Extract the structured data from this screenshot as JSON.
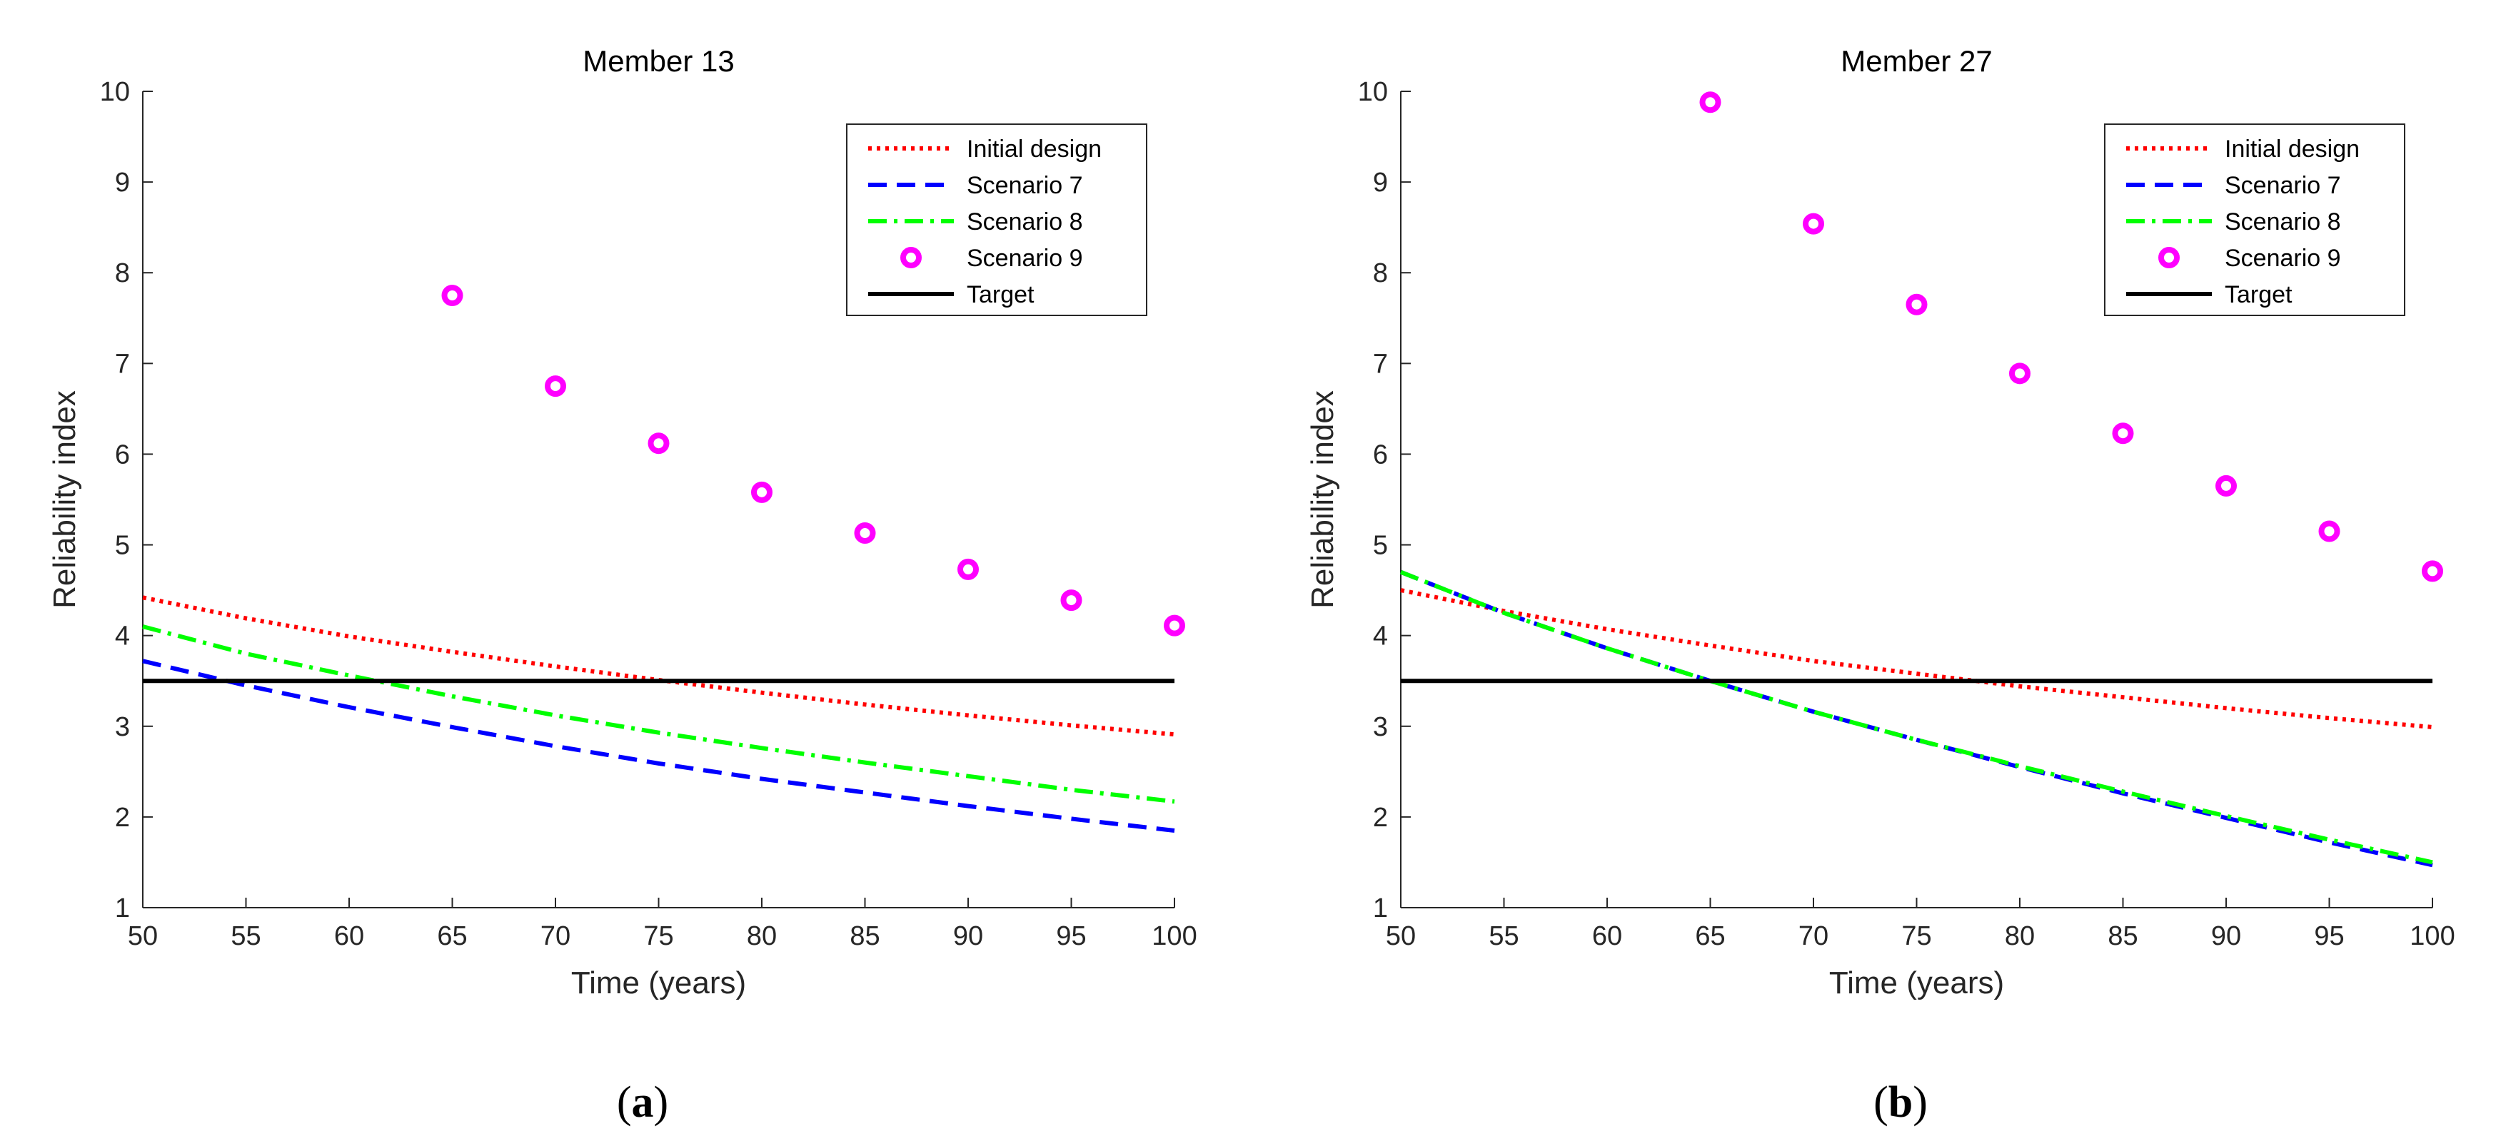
{
  "chart_data": [
    {
      "type": "line",
      "title": "Member 13",
      "xlabel": "Time (years)",
      "ylabel": "Reliability index",
      "xlim": [
        50,
        100
      ],
      "ylim": [
        1,
        10
      ],
      "xticks": [
        50,
        55,
        60,
        65,
        70,
        75,
        80,
        85,
        90,
        95,
        100
      ],
      "yticks": [
        1,
        2,
        3,
        4,
        5,
        6,
        7,
        8,
        9,
        10
      ],
      "grid": false,
      "legend_position": "top-right",
      "caption": {
        "open": "(",
        "letter": "a",
        "close": ")"
      },
      "series": [
        {
          "name": "Initial design",
          "style": "dotted",
          "color": "#ff0000",
          "x": [
            50,
            55,
            60,
            65,
            70,
            75,
            80,
            85,
            90,
            95,
            100
          ],
          "y": [
            4.42,
            4.19,
            3.99,
            3.82,
            3.66,
            3.51,
            3.37,
            3.24,
            3.12,
            3.01,
            2.91
          ]
        },
        {
          "name": "Scenario 7",
          "style": "dashed",
          "color": "#0000ff",
          "x": [
            50,
            55,
            60,
            65,
            70,
            75,
            80,
            85,
            90,
            95,
            100
          ],
          "y": [
            3.72,
            3.45,
            3.21,
            2.99,
            2.78,
            2.59,
            2.42,
            2.27,
            2.12,
            1.98,
            1.85
          ]
        },
        {
          "name": "Scenario 8",
          "style": "dashdot",
          "color": "#00ff00",
          "x": [
            50,
            55,
            60,
            65,
            70,
            75,
            80,
            85,
            90,
            95,
            100
          ],
          "y": [
            4.1,
            3.8,
            3.56,
            3.33,
            3.12,
            2.93,
            2.76,
            2.6,
            2.45,
            2.3,
            2.17
          ]
        },
        {
          "name": "Scenario 9",
          "style": "markers",
          "color": "#ff00ff",
          "x": [
            65,
            70,
            75,
            80,
            85,
            90,
            95,
            100
          ],
          "y": [
            7.75,
            6.75,
            6.12,
            5.58,
            5.13,
            4.73,
            4.39,
            4.11
          ]
        },
        {
          "name": "Target",
          "style": "solid",
          "color": "#000000",
          "x": [
            50,
            100
          ],
          "y": [
            3.5,
            3.5
          ]
        }
      ]
    },
    {
      "type": "line",
      "title": "Member 27",
      "xlabel": "Time (years)",
      "ylabel": "Reliability index",
      "xlim": [
        50,
        100
      ],
      "ylim": [
        1,
        10
      ],
      "xticks": [
        50,
        55,
        60,
        65,
        70,
        75,
        80,
        85,
        90,
        95,
        100
      ],
      "yticks": [
        1,
        2,
        3,
        4,
        5,
        6,
        7,
        8,
        9,
        10
      ],
      "grid": false,
      "legend_position": "top-right",
      "caption": {
        "open": "(",
        "letter": "b",
        "close": ")"
      },
      "series": [
        {
          "name": "Initial design",
          "style": "dotted",
          "color": "#ff0000",
          "x": [
            50,
            55,
            60,
            65,
            70,
            75,
            80,
            85,
            90,
            95,
            100
          ],
          "y": [
            4.5,
            4.27,
            4.07,
            3.89,
            3.72,
            3.58,
            3.44,
            3.32,
            3.2,
            3.09,
            2.99
          ]
        },
        {
          "name": "Scenario 7",
          "style": "dashed",
          "color": "#0000ff",
          "x": [
            50,
            55,
            60,
            65,
            70,
            75,
            80,
            85,
            90,
            95,
            100
          ],
          "y": [
            4.7,
            4.25,
            3.86,
            3.5,
            3.16,
            2.85,
            2.55,
            2.26,
            1.99,
            1.72,
            1.47
          ]
        },
        {
          "name": "Scenario 8",
          "style": "dashdot",
          "color": "#00ff00",
          "x": [
            50,
            55,
            60,
            65,
            70,
            75,
            80,
            85,
            90,
            95,
            100
          ],
          "y": [
            4.7,
            4.25,
            3.86,
            3.5,
            3.16,
            2.85,
            2.56,
            2.28,
            2.01,
            1.75,
            1.5
          ]
        },
        {
          "name": "Scenario 9",
          "style": "markers",
          "color": "#ff00ff",
          "x": [
            65,
            70,
            75,
            80,
            85,
            90,
            95,
            100
          ],
          "y": [
            9.88,
            8.54,
            7.65,
            6.89,
            6.23,
            5.65,
            5.15,
            4.71
          ]
        },
        {
          "name": "Target",
          "style": "solid",
          "color": "#000000",
          "x": [
            50,
            100
          ],
          "y": [
            3.5,
            3.5
          ]
        }
      ]
    }
  ]
}
